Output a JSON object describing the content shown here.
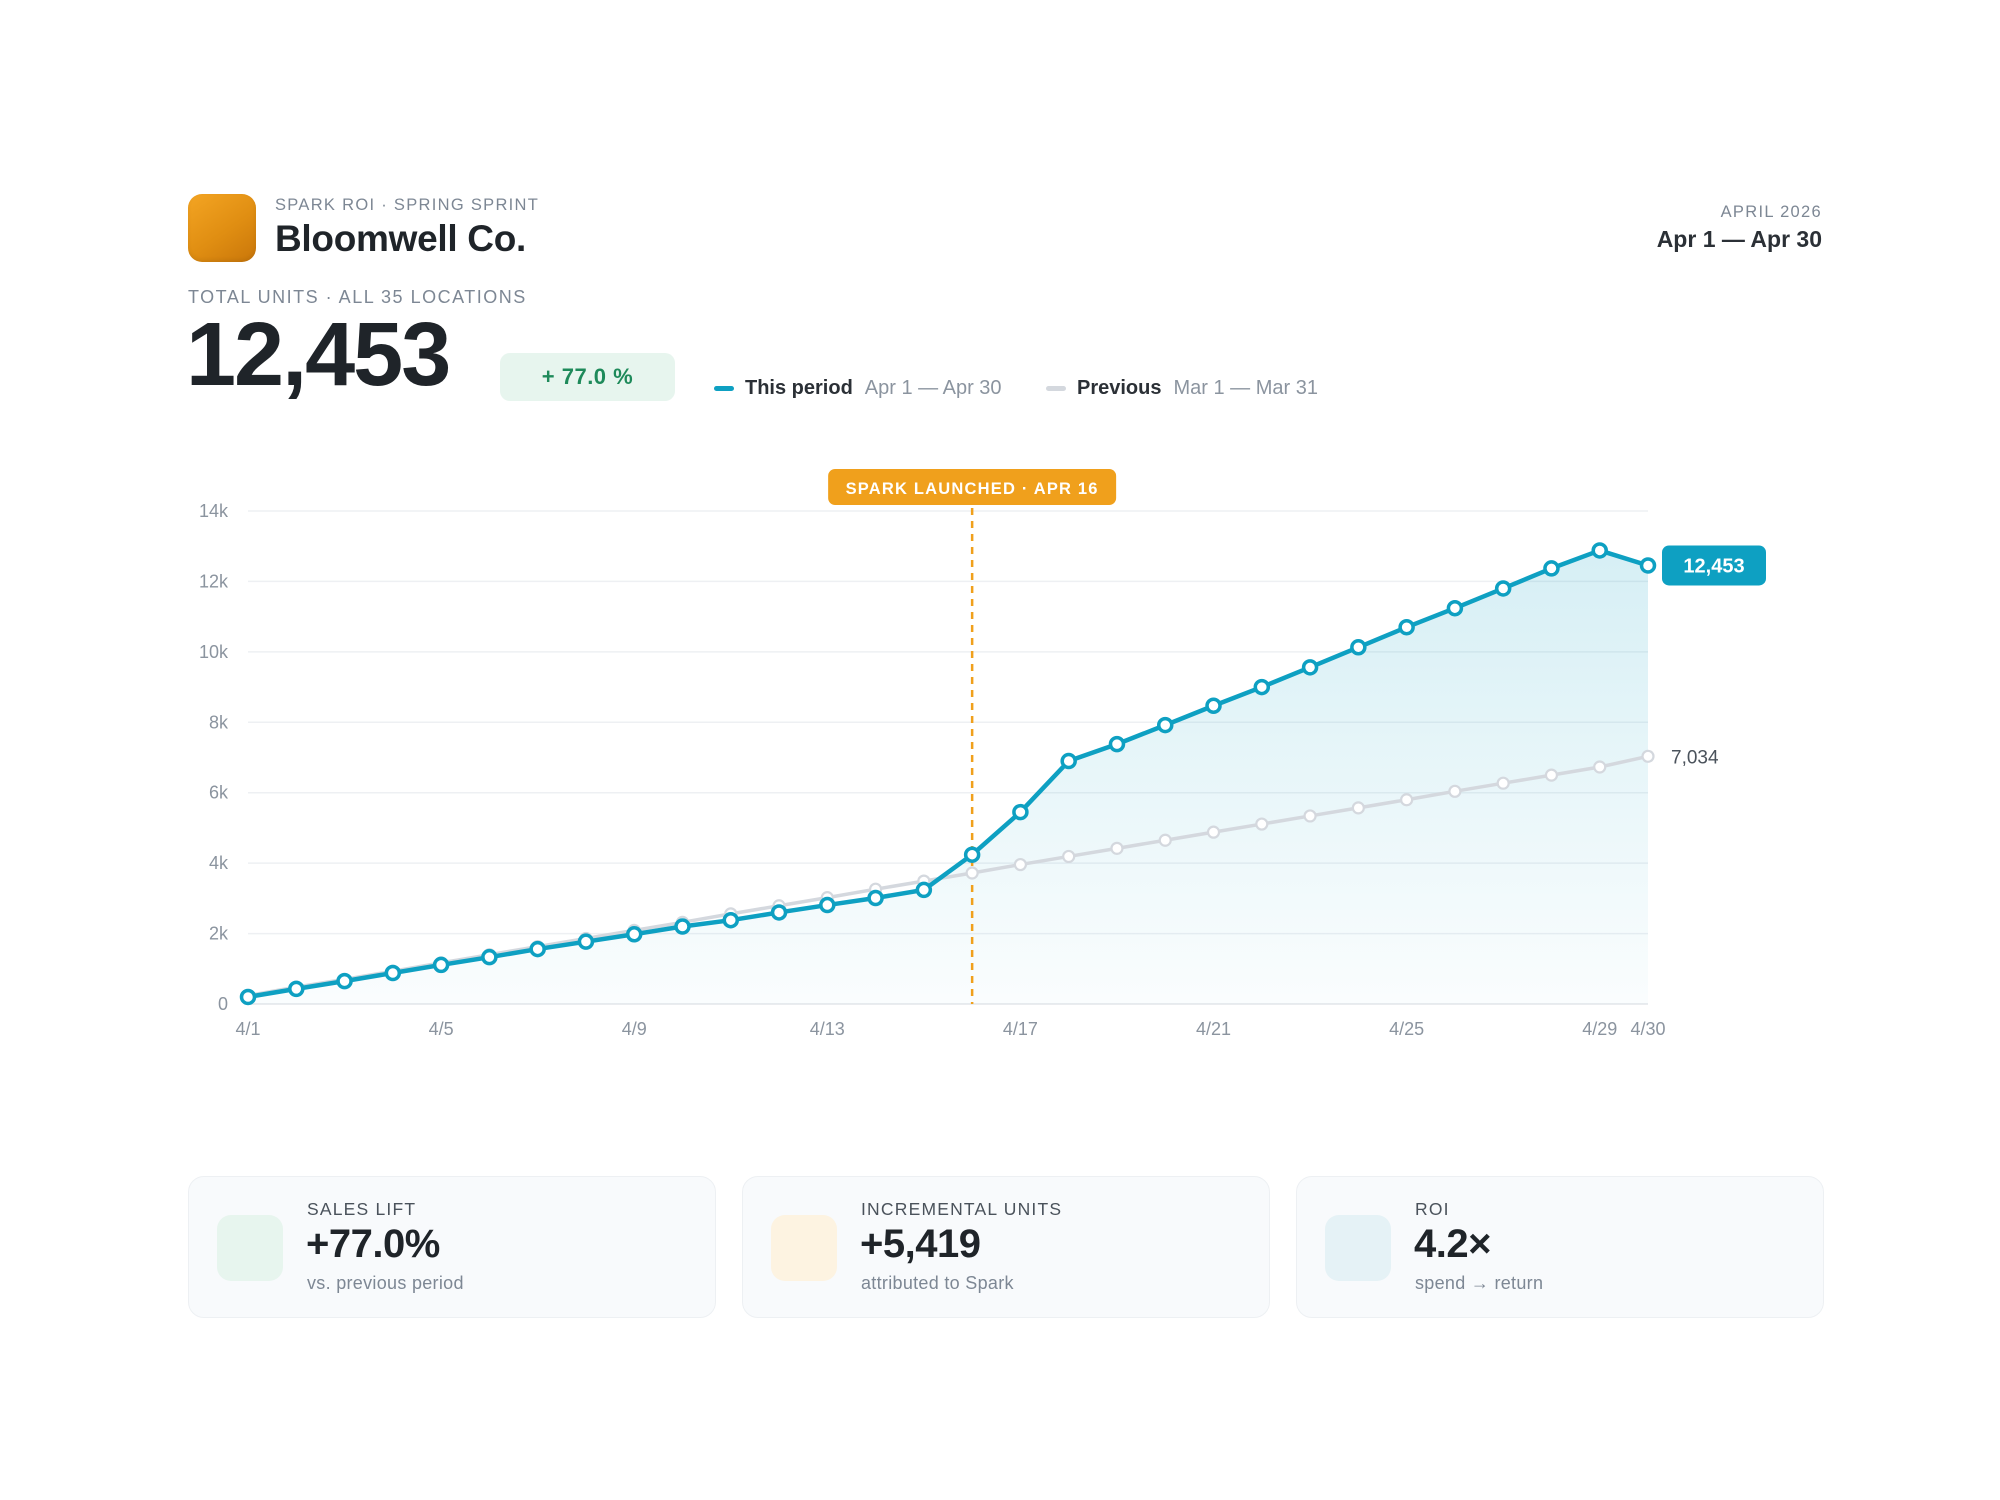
{
  "header": {
    "eyebrow": "SPARK ROI · SPRING SPRINT",
    "brand": "Bloomwell Co.",
    "period_eyebrow": "APRIL 2026",
    "period_range": "Apr 1 — Apr 30",
    "logo_color": "#f0a01c"
  },
  "summary": {
    "total_label": "TOTAL UNITS · ALL 35 LOCATIONS",
    "total_value": "12,453",
    "delta": "+ 77.0 %"
  },
  "legend": [
    {
      "name": "This period",
      "range": "Apr 1 — Apr 30",
      "color": "#0ea0c2"
    },
    {
      "name": "Previous",
      "range": "Mar 1 — Mar 31",
      "color": "#d4d8de"
    }
  ],
  "chart_data": {
    "type": "line",
    "x": [
      1,
      2,
      3,
      4,
      5,
      6,
      7,
      8,
      9,
      10,
      11,
      12,
      13,
      14,
      15,
      16,
      17,
      18,
      19,
      20,
      21,
      22,
      23,
      24,
      25,
      26,
      27,
      28,
      29,
      30
    ],
    "xtick_labels": [
      {
        "day": 1,
        "label": "4/1"
      },
      {
        "day": 5,
        "label": "4/5"
      },
      {
        "day": 9,
        "label": "4/9"
      },
      {
        "day": 13,
        "label": "4/13"
      },
      {
        "day": 17,
        "label": "4/17"
      },
      {
        "day": 21,
        "label": "4/21"
      },
      {
        "day": 25,
        "label": "4/25"
      },
      {
        "day": 29,
        "label": "4/29"
      },
      {
        "day": 30,
        "label": "4/30"
      }
    ],
    "yticks": [
      0,
      2000,
      4000,
      6000,
      8000,
      10000,
      12000,
      14000
    ],
    "ytick_labels": [
      "0",
      "2k",
      "4k",
      "6k",
      "8k",
      "10k",
      "12k",
      "14k"
    ],
    "ylim": [
      0,
      14000
    ],
    "xlim": [
      1,
      30
    ],
    "grid": true,
    "series": [
      {
        "key": "current",
        "color": "#0ea0c2",
        "values": [
          200,
          430,
          650,
          880,
          1110,
          1330,
          1560,
          1770,
          1980,
          2200,
          2380,
          2600,
          2810,
          3010,
          3240,
          4240,
          5450,
          6900,
          7380,
          7920,
          8470,
          9000,
          9560,
          10130,
          10700,
          11240,
          11800,
          12370,
          12880,
          12453
        ],
        "end_label": "12,453"
      },
      {
        "key": "previous",
        "color": "#d4d8de",
        "values": [
          240,
          480,
          700,
          930,
          1170,
          1400,
          1630,
          1860,
          2090,
          2320,
          2560,
          2790,
          3020,
          3260,
          3490,
          3720,
          3960,
          4190,
          4420,
          4650,
          4880,
          5110,
          5340,
          5570,
          5800,
          6040,
          6270,
          6500,
          6730,
          7034
        ],
        "end_label": "7,034"
      }
    ],
    "annotation": {
      "day": 16,
      "label": "SPARK LAUNCHED · APR 16",
      "color": "#f0a01c"
    }
  },
  "kpis": [
    {
      "label": "SALES LIFT",
      "value": "+77.0%",
      "sub": "vs. previous period",
      "chip_color": "#e7f5ee"
    },
    {
      "label": "INCREMENTAL UNITS",
      "value": "+5,419",
      "sub": "attributed to Spark",
      "chip_color": "#fdf3e1"
    },
    {
      "label": "ROI",
      "value": "4.2×",
      "sub": "spend → return",
      "chip_color": "#e5f2f6"
    }
  ]
}
